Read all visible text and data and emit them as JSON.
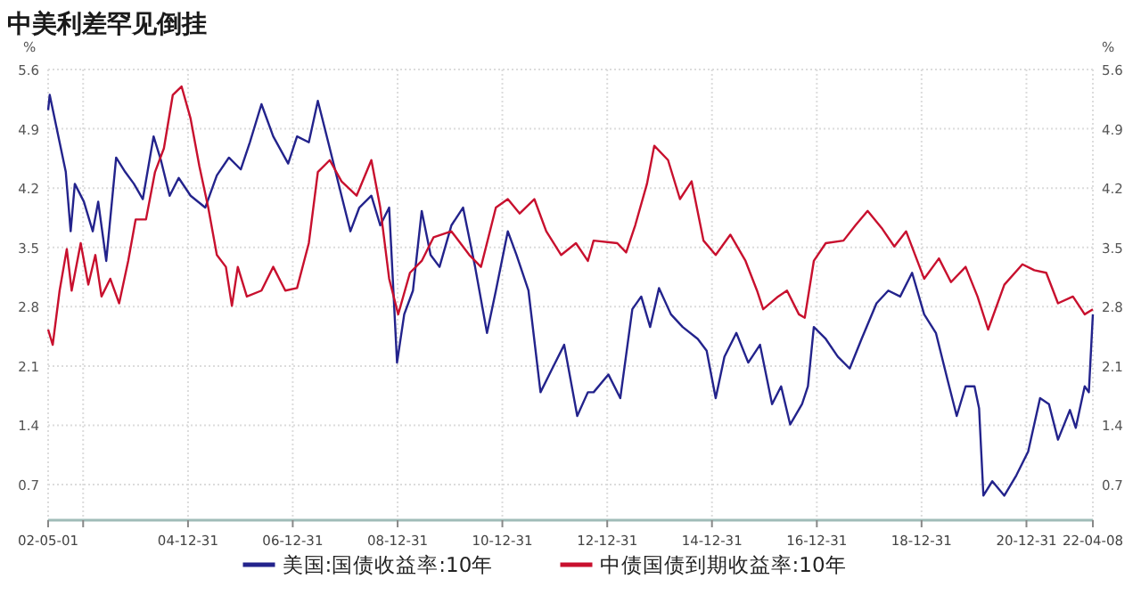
{
  "chart_data": {
    "type": "line",
    "title": "中美利差罕见倒挂",
    "ylabel": "%",
    "y2label": "%",
    "xlim": [
      "2002-05-01",
      "2022-04-08"
    ],
    "xticks": [
      {
        "value": "2002-05-01",
        "label": "02-05-01"
      },
      {
        "value": "2002-12-31",
        "label": null
      },
      {
        "value": "2004-12-31",
        "label": "04-12-31"
      },
      {
        "value": "2006-12-31",
        "label": "06-12-31"
      },
      {
        "value": "2008-12-31",
        "label": "08-12-31"
      },
      {
        "value": "2010-12-31",
        "label": "10-12-31"
      },
      {
        "value": "2012-12-31",
        "label": "12-12-31"
      },
      {
        "value": "2014-12-31",
        "label": "14-12-31"
      },
      {
        "value": "2016-12-31",
        "label": "16-12-31"
      },
      {
        "value": "2018-12-31",
        "label": "18-12-31"
      },
      {
        "value": "2020-12-31",
        "label": "20-12-31"
      },
      {
        "value": "2022-04-08",
        "label": "22-04-08"
      }
    ],
    "ylim": [
      0.28,
      5.6
    ],
    "yticks": [
      0.7,
      1.4,
      2.1,
      2.8,
      3.5,
      4.2,
      4.9,
      5.6
    ],
    "y2lim": [
      0.28,
      5.6
    ],
    "y2ticks": [
      0.7,
      1.4,
      2.1,
      2.8,
      3.5,
      4.2,
      4.9,
      5.6
    ],
    "grid": true,
    "legend": "bottom",
    "series": [
      {
        "name": "美国:国债收益率:10年",
        "color": "#23238c",
        "x": [
          "2002-05-01",
          "2002-05-12",
          "2002-07-20",
          "2002-09-01",
          "2002-10-05",
          "2002-11-03",
          "2003-01-05",
          "2003-03-08",
          "2003-04-15",
          "2003-06-10",
          "2003-08-18",
          "2003-10-20",
          "2003-12-20",
          "2004-02-20",
          "2004-05-05",
          "2004-06-25",
          "2004-08-25",
          "2004-10-27",
          "2005-01-18",
          "2005-04-30",
          "2005-07-20",
          "2005-10-12",
          "2006-01-03",
          "2006-03-07",
          "2006-05-27",
          "2006-08-17",
          "2006-11-29",
          "2007-01-30",
          "2007-04-22",
          "2007-06-24",
          "2007-09-15",
          "2007-12-06",
          "2008-02-06",
          "2008-04-08",
          "2008-07-01",
          "2008-09-01",
          "2008-11-02",
          "2008-12-27",
          "2009-02-15",
          "2009-04-17",
          "2009-06-17",
          "2009-08-18",
          "2009-10-19",
          "2010-01-10",
          "2010-04-01",
          "2010-06-24",
          "2010-09-15",
          "2010-11-16",
          "2011-02-07",
          "2011-04-09",
          "2011-07-01",
          "2011-09-23",
          "2011-12-14",
          "2012-03-06",
          "2012-06-05",
          "2012-08-18",
          "2012-09-27",
          "2013-01-08",
          "2013-04-01",
          "2013-06-24",
          "2013-08-25",
          "2013-10-26",
          "2013-12-27",
          "2014-03-20",
          "2014-06-10",
          "2014-09-23",
          "2014-11-24",
          "2015-01-26",
          "2015-03-28",
          "2015-06-19",
          "2015-09-10",
          "2015-12-01",
          "2016-02-23",
          "2016-04-26",
          "2016-06-28",
          "2016-09-19",
          "2016-10-30",
          "2016-12-10",
          "2017-03-03",
          "2017-05-26",
          "2017-08-17",
          "2017-11-08",
          "2018-02-20",
          "2018-05-13",
          "2018-08-04",
          "2018-10-26",
          "2019-01-18",
          "2019-04-10",
          "2019-07-01",
          "2019-09-02",
          "2019-11-03",
          "2020-01-04",
          "2020-02-05",
          "2020-03-06",
          "2020-05-07",
          "2020-07-30",
          "2020-10-22",
          "2021-01-12",
          "2021-04-05",
          "2021-06-06",
          "2021-08-08",
          "2021-10-30",
          "2021-12-10",
          "2022-02-10",
          "2022-03-11",
          "2022-04-08"
        ],
        "values": [
          5.12,
          5.3,
          4.74,
          4.39,
          3.69,
          4.25,
          4.04,
          3.69,
          4.04,
          3.34,
          4.56,
          4.39,
          4.25,
          4.07,
          4.81,
          4.53,
          4.11,
          4.32,
          4.11,
          3.97,
          4.35,
          4.56,
          4.42,
          4.74,
          5.19,
          4.81,
          4.49,
          4.81,
          4.74,
          5.23,
          4.67,
          4.11,
          3.69,
          3.97,
          4.11,
          3.76,
          3.97,
          2.14,
          2.71,
          2.99,
          3.93,
          3.41,
          3.27,
          3.76,
          3.97,
          3.27,
          2.49,
          2.99,
          3.69,
          3.41,
          2.99,
          1.79,
          2.07,
          2.35,
          1.51,
          1.79,
          1.79,
          2.0,
          1.72,
          2.77,
          2.92,
          2.56,
          3.02,
          2.71,
          2.56,
          2.42,
          2.28,
          1.72,
          2.21,
          2.49,
          2.14,
          2.35,
          1.65,
          1.86,
          1.41,
          1.65,
          1.86,
          2.56,
          2.42,
          2.21,
          2.07,
          2.42,
          2.84,
          2.99,
          2.92,
          3.2,
          2.71,
          2.49,
          1.93,
          1.51,
          1.86,
          1.86,
          1.6,
          0.57,
          0.74,
          0.57,
          0.81,
          1.09,
          1.72,
          1.65,
          1.23,
          1.58,
          1.37,
          1.86,
          1.79,
          2.71
        ]
      },
      {
        "name": "中债国债到期收益率:10年",
        "color": "#c8102e",
        "x": [
          "2002-05-01",
          "2002-06-02",
          "2002-07-20",
          "2002-09-08",
          "2002-10-12",
          "2002-12-14",
          "2003-02-05",
          "2003-03-26",
          "2003-05-08",
          "2003-07-08",
          "2003-09-08",
          "2003-11-10",
          "2004-01-01",
          "2004-03-13",
          "2004-05-15",
          "2004-07-16",
          "2004-09-16",
          "2004-11-16",
          "2005-01-18",
          "2005-03-20",
          "2005-05-21",
          "2005-07-20",
          "2005-09-21",
          "2005-11-02",
          "2005-12-13",
          "2006-02-14",
          "2006-05-27",
          "2006-08-17",
          "2006-11-09",
          "2007-01-30",
          "2007-04-22",
          "2007-06-24",
          "2007-09-15",
          "2007-12-06",
          "2008-03-20",
          "2008-07-01",
          "2008-09-01",
          "2008-11-02",
          "2009-01-04",
          "2009-03-27",
          "2009-06-17",
          "2009-09-08",
          "2010-01-10",
          "2010-05-15",
          "2010-08-04",
          "2010-11-16",
          "2011-02-07",
          "2011-05-01",
          "2011-08-11",
          "2011-11-02",
          "2012-02-14",
          "2012-05-27",
          "2012-08-18",
          "2012-09-27",
          "2013-03-11",
          "2013-05-12",
          "2013-07-14",
          "2013-10-04",
          "2013-11-24",
          "2014-02-28",
          "2014-05-22",
          "2014-08-11",
          "2014-11-02",
          "2015-01-26",
          "2015-05-08",
          "2015-08-22",
          "2015-11-10",
          "2015-12-23",
          "2016-04-05",
          "2016-06-06",
          "2016-08-28",
          "2016-10-08",
          "2016-12-10",
          "2017-03-03",
          "2017-07-05",
          "2017-09-26",
          "2017-12-20",
          "2018-04-01",
          "2018-06-24",
          "2018-09-14",
          "2019-01-18",
          "2019-05-01",
          "2019-07-24",
          "2019-11-03",
          "2020-01-25",
          "2020-04-08",
          "2020-07-30",
          "2020-12-03",
          "2021-02-24",
          "2021-05-18",
          "2021-08-08",
          "2021-11-20",
          "2022-02-10",
          "2022-04-08"
        ],
        "values": [
          2.53,
          2.35,
          2.99,
          3.48,
          2.99,
          3.55,
          3.06,
          3.41,
          2.92,
          3.13,
          2.84,
          3.34,
          3.83,
          3.83,
          4.39,
          4.67,
          5.3,
          5.4,
          5.02,
          4.46,
          3.97,
          3.41,
          3.27,
          2.81,
          3.27,
          2.92,
          2.99,
          3.27,
          2.99,
          3.02,
          3.55,
          4.39,
          4.53,
          4.28,
          4.11,
          4.53,
          3.97,
          3.13,
          2.71,
          3.2,
          3.34,
          3.62,
          3.69,
          3.41,
          3.27,
          3.97,
          4.07,
          3.9,
          4.07,
          3.69,
          3.41,
          3.55,
          3.34,
          3.58,
          3.55,
          3.44,
          3.76,
          4.25,
          4.7,
          4.53,
          4.07,
          4.28,
          3.58,
          3.41,
          3.65,
          3.34,
          2.99,
          2.77,
          2.92,
          2.99,
          2.71,
          2.67,
          3.34,
          3.55,
          3.58,
          3.76,
          3.93,
          3.72,
          3.51,
          3.69,
          3.13,
          3.37,
          3.09,
          3.27,
          2.92,
          2.53,
          3.06,
          3.3,
          3.23,
          3.2,
          2.84,
          2.92,
          2.71,
          2.77
        ]
      }
    ]
  }
}
